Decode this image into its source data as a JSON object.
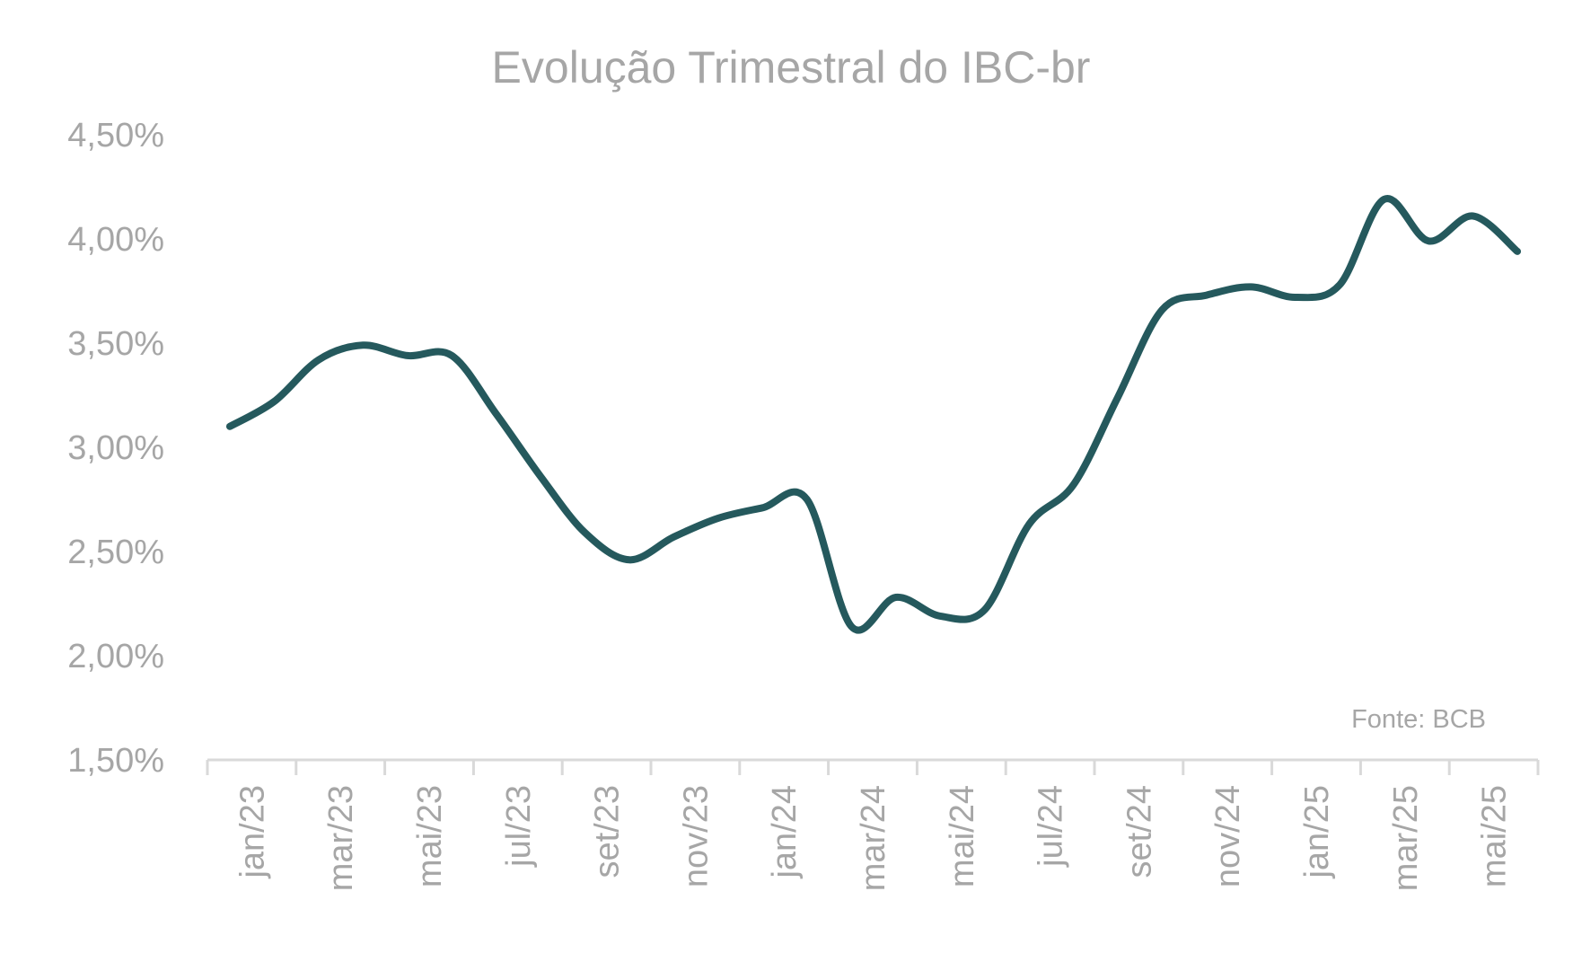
{
  "chart_data": {
    "type": "line",
    "title": "Evolução Trimestral do IBC-br",
    "source": "Fonte: BCB",
    "xlabel": "",
    "ylabel": "",
    "ylim": [
      1.5,
      4.5
    ],
    "y_ticks": [
      "1,50%",
      "2,00%",
      "2,50%",
      "3,00%",
      "3,50%",
      "4,00%",
      "4,50%"
    ],
    "y_tick_values": [
      1.5,
      2.0,
      2.5,
      3.0,
      3.5,
      4.0,
      4.5
    ],
    "x_tick_labels": [
      "jan/23",
      "mar/23",
      "mai/23",
      "jul/23",
      "set/23",
      "nov/23",
      "jan/24",
      "mar/24",
      "mai/24",
      "jul/24",
      "set/24",
      "nov/24",
      "jan/25",
      "mar/25",
      "mai/25"
    ],
    "categories": [
      "jan/23",
      "fev/23",
      "mar/23",
      "abr/23",
      "mai/23",
      "jun/23",
      "jul/23",
      "ago/23",
      "set/23",
      "out/23",
      "nov/23",
      "dez/23",
      "jan/24",
      "fev/24",
      "mar/24",
      "abr/24",
      "mai/24",
      "jun/24",
      "jul/24",
      "ago/24",
      "set/24",
      "out/24",
      "nov/24",
      "dez/24",
      "jan/25",
      "fev/25",
      "mar/25",
      "abr/25",
      "mai/25",
      "jun/25"
    ],
    "series": [
      {
        "values": [
          3.1,
          3.22,
          3.42,
          3.49,
          3.44,
          3.44,
          3.16,
          2.86,
          2.59,
          2.46,
          2.57,
          2.66,
          2.71,
          2.75,
          2.14,
          2.28,
          2.19,
          2.22,
          2.63,
          2.82,
          3.24,
          3.66,
          3.73,
          3.77,
          3.72,
          3.78,
          4.19,
          3.99,
          4.11,
          3.94
        ]
      }
    ],
    "colors": {
      "line": "#25595d",
      "axis": "#d9d9d9",
      "text": "#a6a6a6"
    },
    "grid": false,
    "legend": "none"
  }
}
